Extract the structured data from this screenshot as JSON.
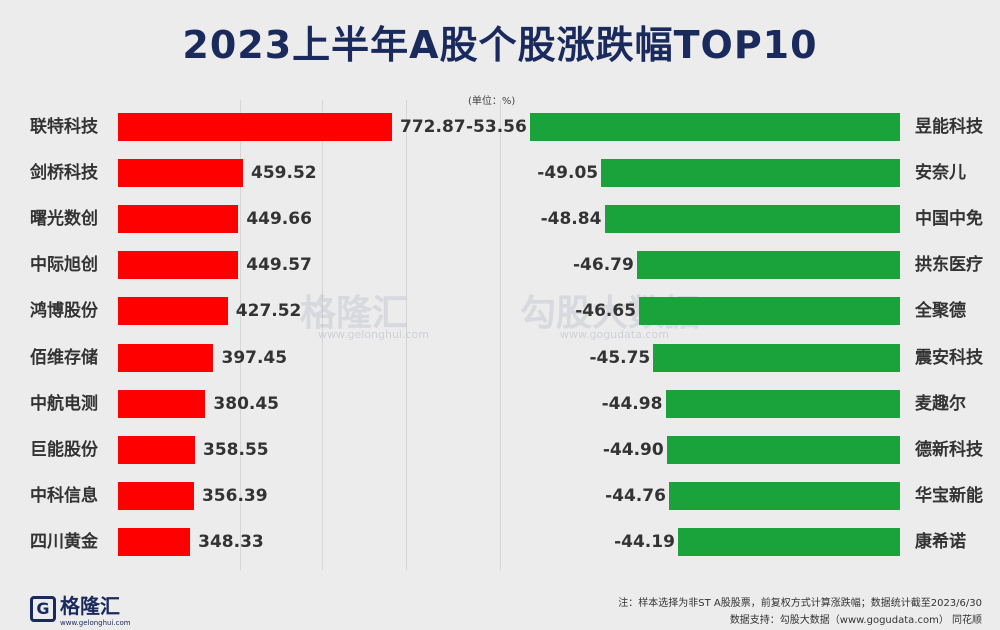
{
  "title": "2023上半年A股个股涨跌幅TOP10",
  "unit": "(单位：%)",
  "watermark": {
    "brand": "格隆汇",
    "brand_url": "www.gelonghui.com",
    "brand2": "勾股大数据",
    "brand2_url": "www.gogudata.com"
  },
  "notes": {
    "line1": "注：样本选择为非ST A股股票，前复权方式计算涨跌幅；数据统计截至2023/6/30",
    "line2": "数据支持：勾股大数据（www.gogudata.com） 同花顺"
  },
  "logo": {
    "text": "格隆汇",
    "url": "www.gelonghui.com"
  },
  "colors": {
    "gain": "#ff0000",
    "loss": "#1aa33a",
    "title": "#1b2a5c"
  },
  "chart_data": [
    {
      "type": "bar",
      "orientation": "horizontal",
      "panel": "left",
      "categories": [
        "联特科技",
        "剑桥科技",
        "曙光数创",
        "中际旭创",
        "鸿博股份",
        "佰维存储",
        "中航电测",
        "巨能股份",
        "中科信息",
        "四川黄金"
      ],
      "values": [
        772.87,
        459.52,
        449.66,
        449.57,
        427.52,
        397.45,
        380.45,
        358.55,
        356.39,
        348.33
      ],
      "labels": [
        "772.87",
        "459.52",
        "449.66",
        "449.57",
        "427.52",
        "397.45",
        "380.45",
        "358.55",
        "356.39",
        "348.33"
      ],
      "min": 200,
      "color": "#ff0000"
    },
    {
      "type": "bar",
      "orientation": "horizontal",
      "panel": "right",
      "categories": [
        "昱能科技",
        "安奈儿",
        "中国中免",
        "拱东医疗",
        "全聚德",
        "震安科技",
        "麦趣尔",
        "德新科技",
        "华宝新能",
        "康希诺"
      ],
      "values": [
        -53.56,
        -49.05,
        -48.84,
        -46.79,
        -46.65,
        -45.75,
        -44.98,
        -44.9,
        -44.76,
        -44.19
      ],
      "labels": [
        "-53.56",
        "-49.05",
        "-48.84",
        "-46.79",
        "-46.65",
        "-45.75",
        "-44.98",
        "-44.90",
        "-44.76",
        "-44.19"
      ],
      "min": 30,
      "color": "#1aa33a"
    }
  ]
}
